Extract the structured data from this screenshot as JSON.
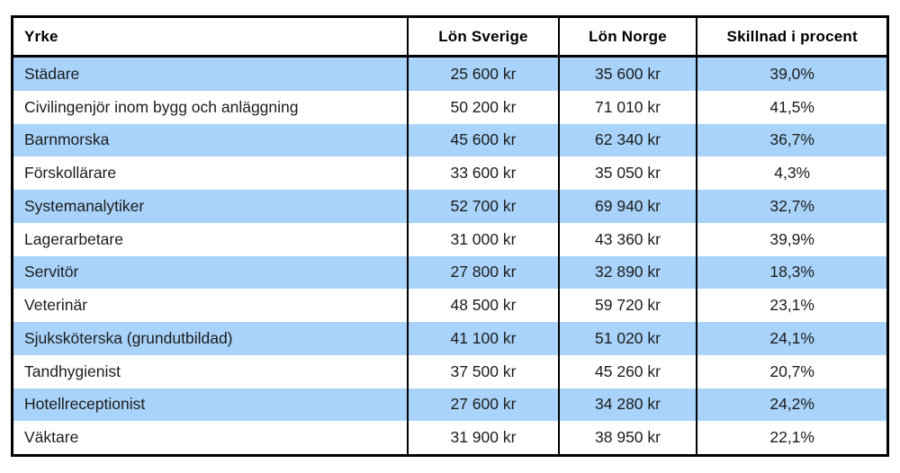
{
  "colors": {
    "row_highlight": "#A9D3FA",
    "border": "#000000",
    "header_bg": "#FFFFFF",
    "text": "#1C1C1C"
  },
  "table": {
    "columns": [
      {
        "label": "Yrke"
      },
      {
        "label": "Lön Sverige"
      },
      {
        "label": "Lön Norge"
      },
      {
        "label": "Skillnad i procent"
      }
    ],
    "rows": [
      {
        "yrke": "Städare",
        "lon_sverige": "25 600 kr",
        "lon_norge": "35 600 kr",
        "skillnad": "39,0%"
      },
      {
        "yrke": "Civilingenjör inom bygg och anläggning",
        "lon_sverige": "50 200 kr",
        "lon_norge": "71 010 kr",
        "skillnad": "41,5%"
      },
      {
        "yrke": "Barnmorska",
        "lon_sverige": "45 600 kr",
        "lon_norge": "62 340 kr",
        "skillnad": "36,7%"
      },
      {
        "yrke": "Förskollärare",
        "lon_sverige": "33 600 kr",
        "lon_norge": "35 050 kr",
        "skillnad": "4,3%"
      },
      {
        "yrke": "Systemanalytiker",
        "lon_sverige": "52 700 kr",
        "lon_norge": "69 940 kr",
        "skillnad": "32,7%"
      },
      {
        "yrke": "Lagerarbetare",
        "lon_sverige": "31 000 kr",
        "lon_norge": "43 360 kr",
        "skillnad": "39,9%"
      },
      {
        "yrke": "Servitör",
        "lon_sverige": "27 800 kr",
        "lon_norge": "32 890 kr",
        "skillnad": "18,3%"
      },
      {
        "yrke": "Veterinär",
        "lon_sverige": "48 500 kr",
        "lon_norge": "59 720 kr",
        "skillnad": "23,1%"
      },
      {
        "yrke": "Sjuksköterska (grundutbildad)",
        "lon_sverige": "41 100 kr",
        "lon_norge": "51 020 kr",
        "skillnad": "24,1%"
      },
      {
        "yrke": "Tandhygienist",
        "lon_sverige": "37 500 kr",
        "lon_norge": "45 260 kr",
        "skillnad": "20,7%"
      },
      {
        "yrke": "Hotellreceptionist",
        "lon_sverige": "27 600 kr",
        "lon_norge": "34 280 kr",
        "skillnad": "24,2%"
      },
      {
        "yrke": "Väktare",
        "lon_sverige": "31 900 kr",
        "lon_norge": "38 950 kr",
        "skillnad": "22,1%"
      }
    ]
  },
  "chart_data": {
    "type": "table",
    "title": "",
    "columns": [
      "Yrke",
      "Lön Sverige",
      "Lön Norge",
      "Skillnad i procent"
    ],
    "rows": [
      [
        "Städare",
        25600,
        35600,
        39.0
      ],
      [
        "Civilingenjör inom bygg och anläggning",
        50200,
        71010,
        41.5
      ],
      [
        "Barnmorska",
        45600,
        62340,
        36.7
      ],
      [
        "Förskollärare",
        33600,
        35050,
        4.3
      ],
      [
        "Systemanalytiker",
        52700,
        69940,
        32.7
      ],
      [
        "Lagerarbetare",
        31000,
        43360,
        39.9
      ],
      [
        "Servitör",
        27800,
        32890,
        18.3
      ],
      [
        "Veterinär",
        48500,
        59720,
        23.1
      ],
      [
        "Sjuksköterska (grundutbildad)",
        41100,
        51020,
        24.1
      ],
      [
        "Tandhygienist",
        37500,
        45260,
        20.7
      ],
      [
        "Hotellreceptionist",
        27600,
        34280,
        24.2
      ],
      [
        "Väktare",
        31900,
        38950,
        22.1
      ]
    ],
    "units": {
      "Lön Sverige": "kr",
      "Lön Norge": "kr",
      "Skillnad i procent": "%"
    },
    "layout": {
      "striped": true,
      "stripe_color": "#A9D3FA",
      "header_position": "top"
    }
  }
}
